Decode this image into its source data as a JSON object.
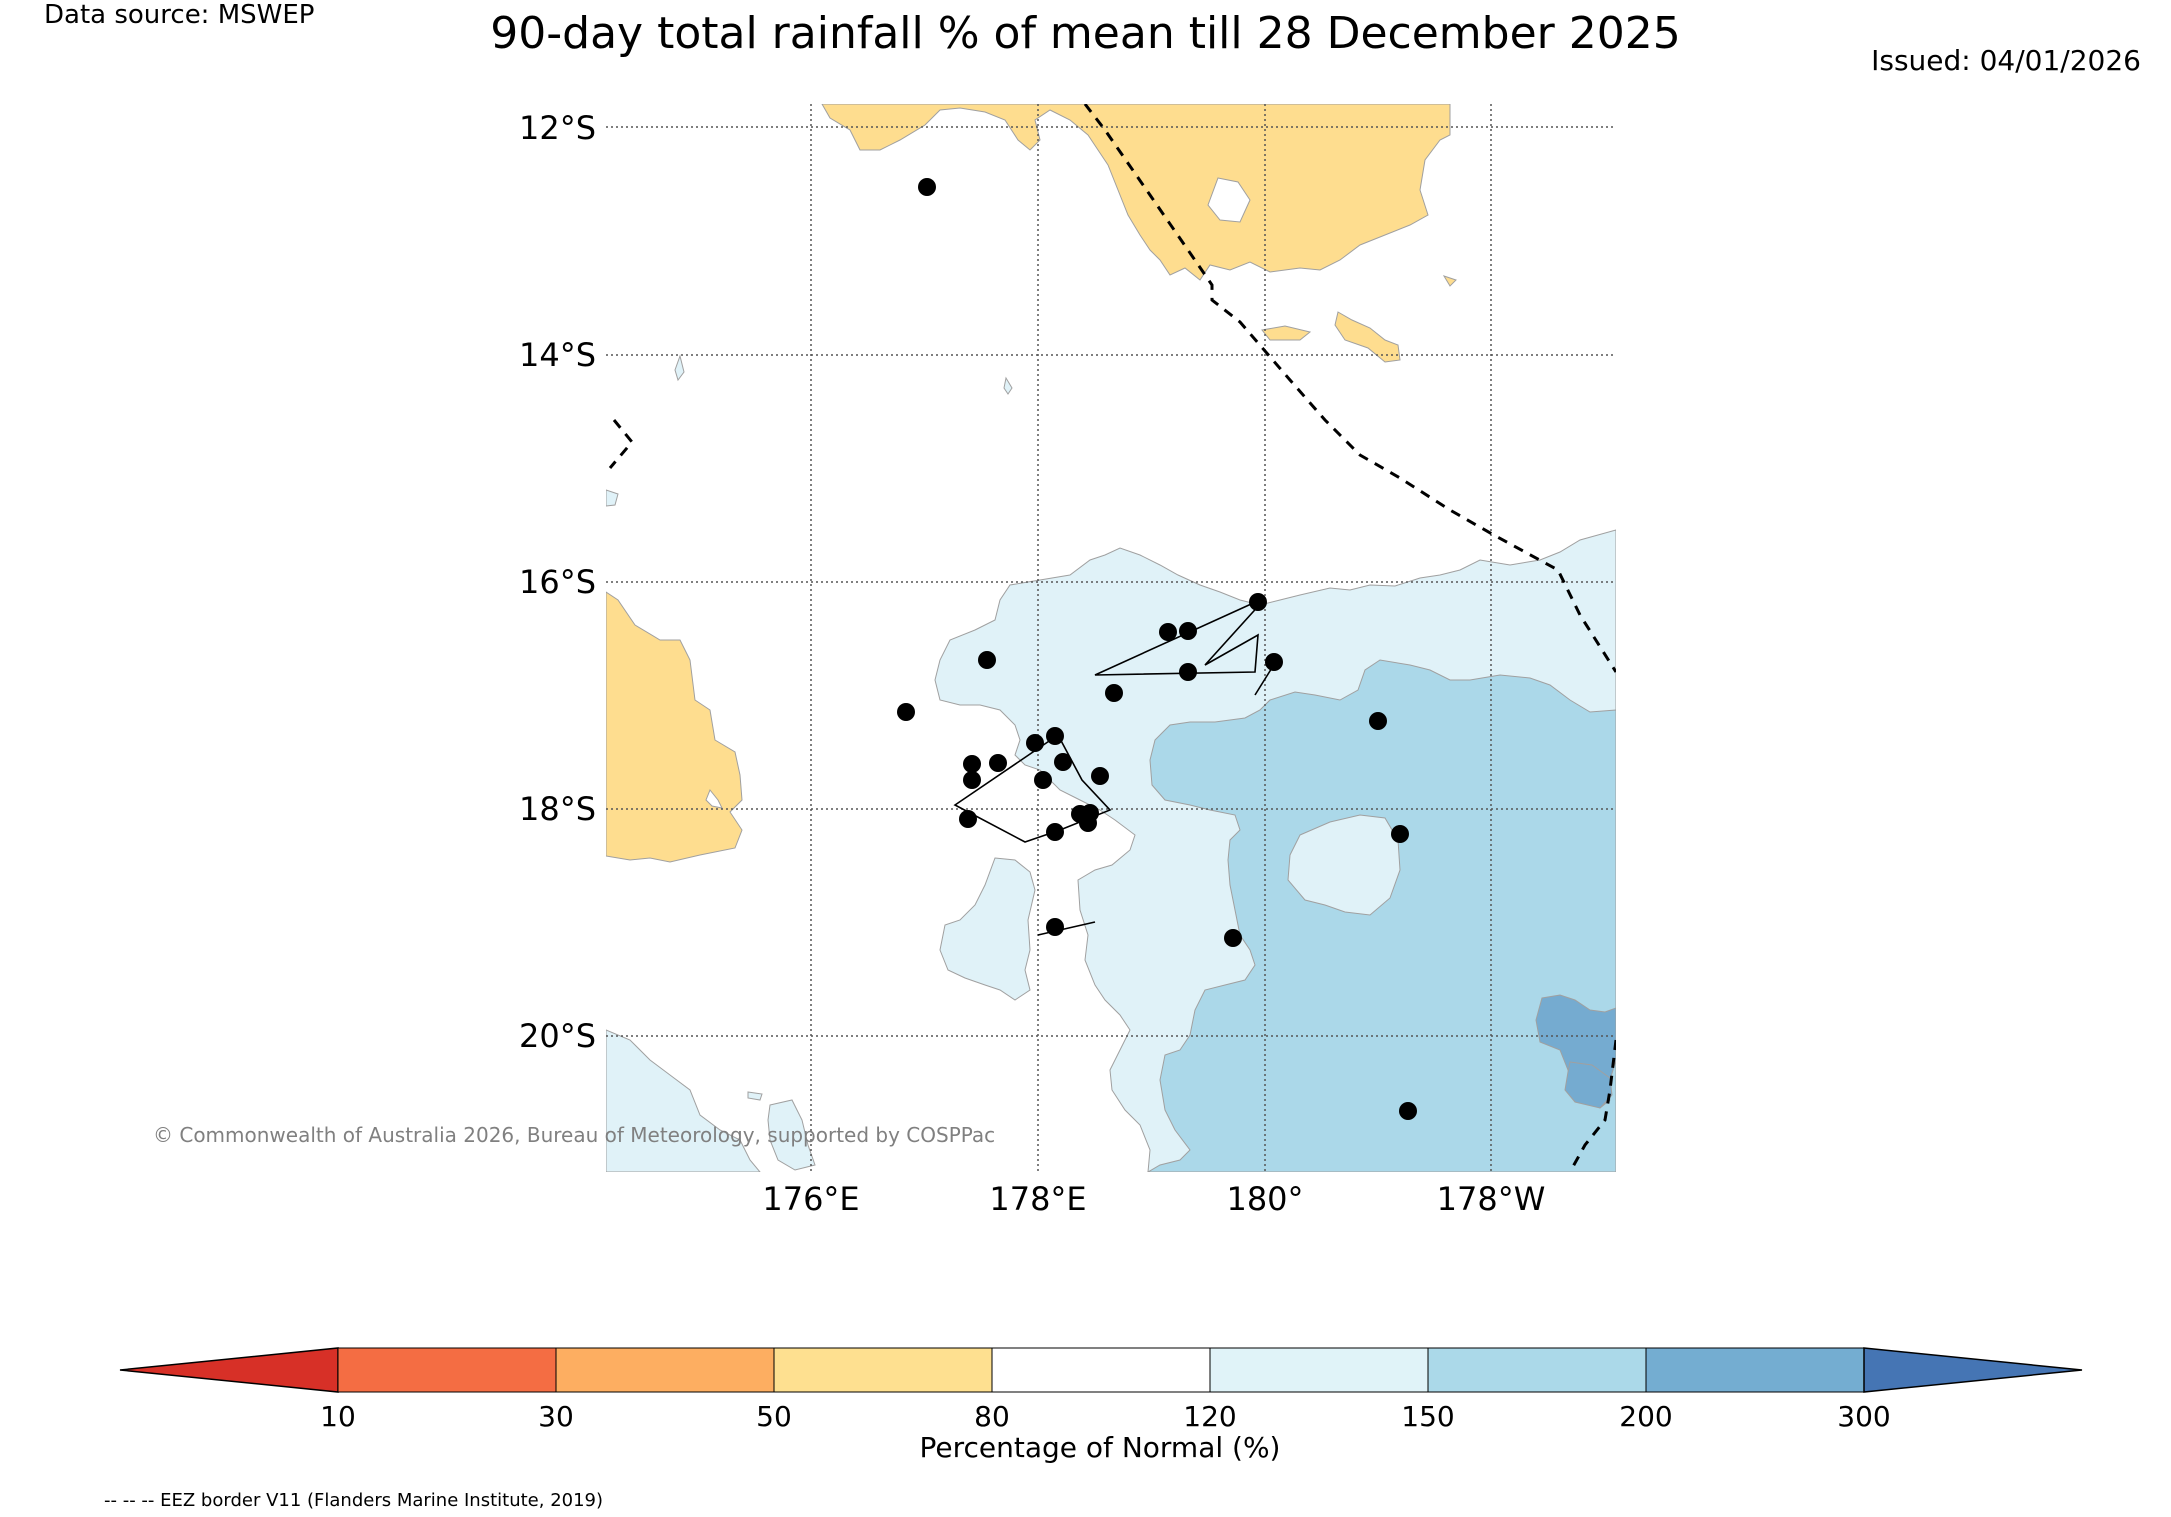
{
  "header": {
    "data_source": "Data source: MSWEP",
    "title": "90-day total rainfall % of mean till 28 December 2025",
    "issued": "Issued: 04/01/2026"
  },
  "map": {
    "lat_labels": [
      "12°S",
      "14°S",
      "16°S",
      "18°S",
      "20°S"
    ],
    "lon_labels": [
      "176°E",
      "178°E",
      "180°",
      "178°W"
    ],
    "copyright": "© Commonwealth of Australia 2026, Bureau of Meteorology, supported by COSPPac",
    "colors": {
      "c50_80": "#fedd8f",
      "c120_150": "#e0f2f8",
      "c150_200": "#abd8e9",
      "c200_300": "#75abd0",
      "grid": "#555555"
    }
  },
  "colorbar": {
    "ticks": [
      "10",
      "30",
      "50",
      "80",
      "120",
      "150",
      "200",
      "300"
    ],
    "label": "Percentage of Normal (%)",
    "colors": [
      "#d73027",
      "#f46d43",
      "#fdae61",
      "#fee090",
      "#ffffff",
      "#e0f3f8",
      "#abd9e9",
      "#74add1",
      "#4575b4"
    ]
  },
  "footer": {
    "eez_note": "-- -- -- EEZ border V11 (Flanders Marine Institute, 2019)"
  }
}
